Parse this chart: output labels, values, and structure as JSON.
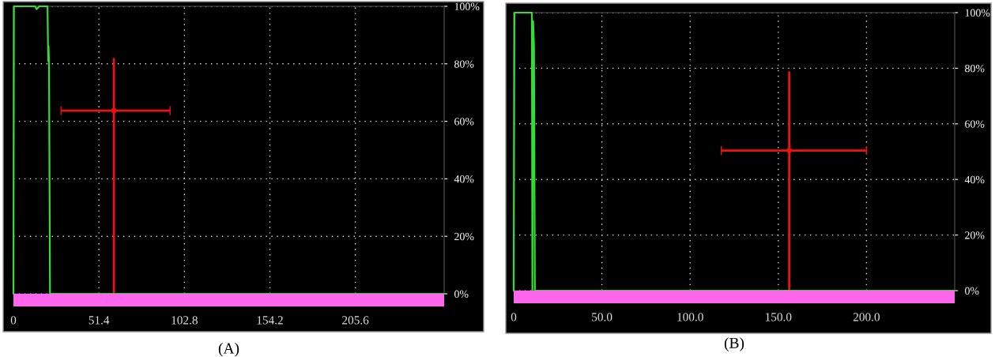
{
  "chart_data": [
    {
      "type": "line",
      "title": "(A)",
      "xlim": [
        0,
        259
      ],
      "ylim": [
        0,
        100
      ],
      "xticks": [
        0,
        51.4,
        102.8,
        154.2,
        205.6
      ],
      "yticks": [
        {
          "value": 0,
          "label": "0%"
        },
        {
          "value": 20,
          "label": "20%"
        },
        {
          "value": 40,
          "label": "40%"
        },
        {
          "value": 60,
          "label": "60%"
        },
        {
          "value": 80,
          "label": "80%"
        },
        {
          "value": 100,
          "label": "100%"
        }
      ],
      "grid": true,
      "line_style": "solid",
      "series": [
        {
          "color": "#33dd33",
          "x": [
            0,
            0.3,
            13,
            14,
            15.5,
            20.5,
            20.9,
            21.1,
            21.4,
            22,
            259
          ],
          "values": [
            0,
            100,
            100,
            99,
            100,
            100,
            81,
            86,
            80,
            0,
            0
          ]
        },
        {
          "color": "#ee1111",
          "marker": "circle",
          "x": [
            60.4
          ],
          "values": [
            63.7
          ],
          "errors": [
            [
              0,
              82
            ]
          ],
          "xerrors": [
            [
              28.6,
              94.2
            ]
          ]
        }
      ]
    },
    {
      "type": "line",
      "title": "(B)",
      "xlim": [
        0,
        250
      ],
      "ylim": [
        0,
        100
      ],
      "xticks": [
        0,
        {
          "value": 50,
          "label": "50.0"
        },
        {
          "value": 100,
          "label": "100.0"
        },
        {
          "value": 150,
          "label": "150.0"
        },
        {
          "value": 200,
          "label": "200.0"
        }
      ],
      "yticks": [
        {
          "value": 0,
          "label": "0%"
        },
        {
          "value": 20,
          "label": "20%"
        },
        {
          "value": 40,
          "label": "40%"
        },
        {
          "value": 60,
          "label": "60%"
        },
        {
          "value": 80,
          "label": "80%"
        },
        {
          "value": 100,
          "label": "100%"
        }
      ],
      "grid": true,
      "line_style": "solid",
      "series": [
        {
          "color": "#33dd33",
          "x": [
            0,
            0.4,
            10.3,
            10.6,
            11.0,
            11.5,
            12.0,
            250
          ],
          "values": [
            0,
            100,
            100,
            0,
            97,
            88,
            0,
            0
          ]
        },
        {
          "color": "#ee1111",
          "marker": "circle",
          "x": [
            156.2
          ],
          "values": [
            50.4
          ],
          "errors": [
            [
              0,
              78.8
            ]
          ],
          "xerrors": [
            [
              117.7,
              200
            ]
          ]
        }
      ]
    }
  ]
}
